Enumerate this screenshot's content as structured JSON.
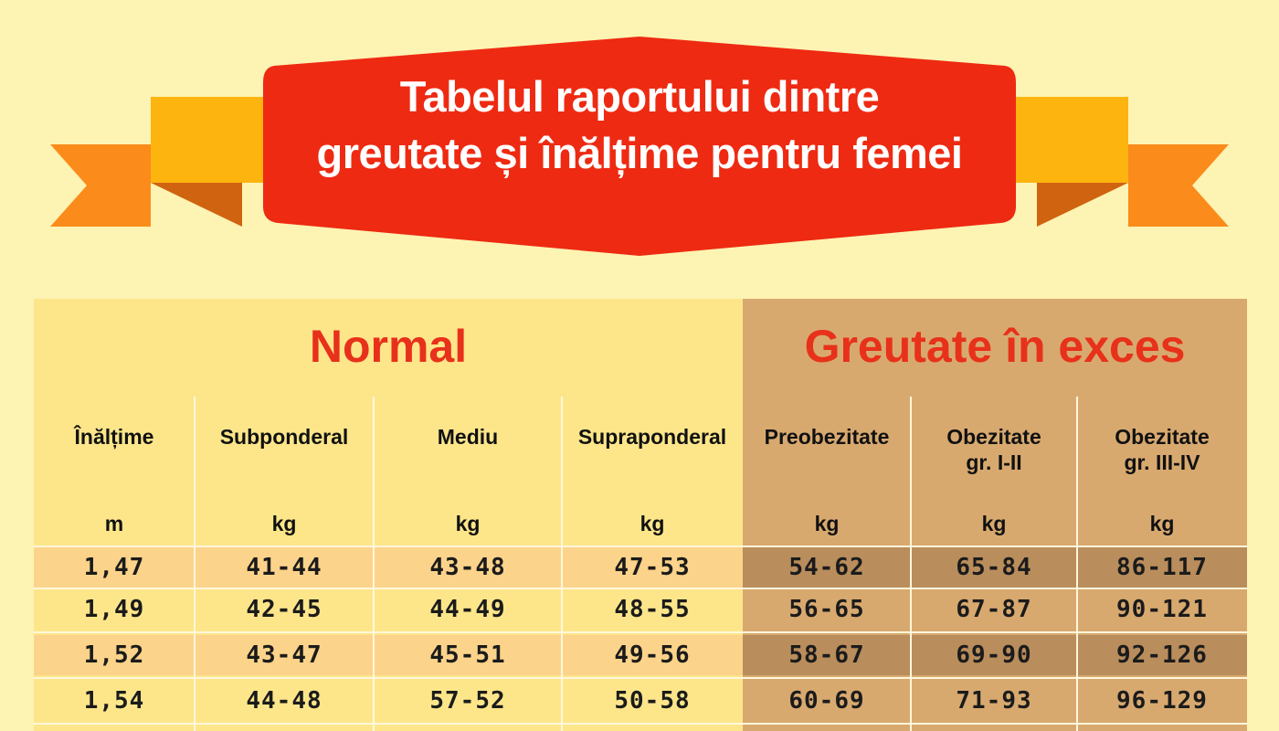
{
  "banner": {
    "title_line1": "Tabelul raportului dintre",
    "title_line2": "greutate și înălțime pentru femei",
    "colors": {
      "ribbon_red": "#ee2a12",
      "wing_yellow": "#fdb40f",
      "wing_orange": "#fb8b1a",
      "fold_dark": "#d0630f"
    }
  },
  "groups": {
    "normal": "Normal",
    "excess": "Greutate în exces"
  },
  "columns": [
    {
      "label_line1": "Înălțime",
      "label_line2": "",
      "unit": "m"
    },
    {
      "label_line1": "Subponderal",
      "label_line2": "",
      "unit": "kg"
    },
    {
      "label_line1": "Mediu",
      "label_line2": "",
      "unit": "kg"
    },
    {
      "label_line1": "Supraponderal",
      "label_line2": "",
      "unit": "kg"
    },
    {
      "label_line1": "Preobezitate",
      "label_line2": "",
      "unit": "kg"
    },
    {
      "label_line1": "Obezitate",
      "label_line2": "gr. I-II",
      "unit": "kg"
    },
    {
      "label_line1": "Obezitate",
      "label_line2": "gr. III-IV",
      "unit": "kg"
    }
  ],
  "rows": [
    [
      "1,47",
      "41-44",
      "43-48",
      "47-53",
      "54-62",
      "65-84",
      "86-117"
    ],
    [
      "1,49",
      "42-45",
      "44-49",
      "48-55",
      "56-65",
      "67-87",
      "90-121"
    ],
    [
      "1,52",
      "43-47",
      "45-51",
      "49-56",
      "58-67",
      "69-90",
      "92-126"
    ],
    [
      "1,54",
      "44-48",
      "57-52",
      "50-58",
      "60-69",
      "71-93",
      "96-129"
    ]
  ],
  "colors": {
    "background": "#fdf3b3",
    "normal_bg": "#fde68a",
    "excess_bg": "#d8a96f",
    "normal_row_shade": "#fcd38a",
    "excess_row_shade": "#b98d5c",
    "group_title": "#e8311a"
  }
}
